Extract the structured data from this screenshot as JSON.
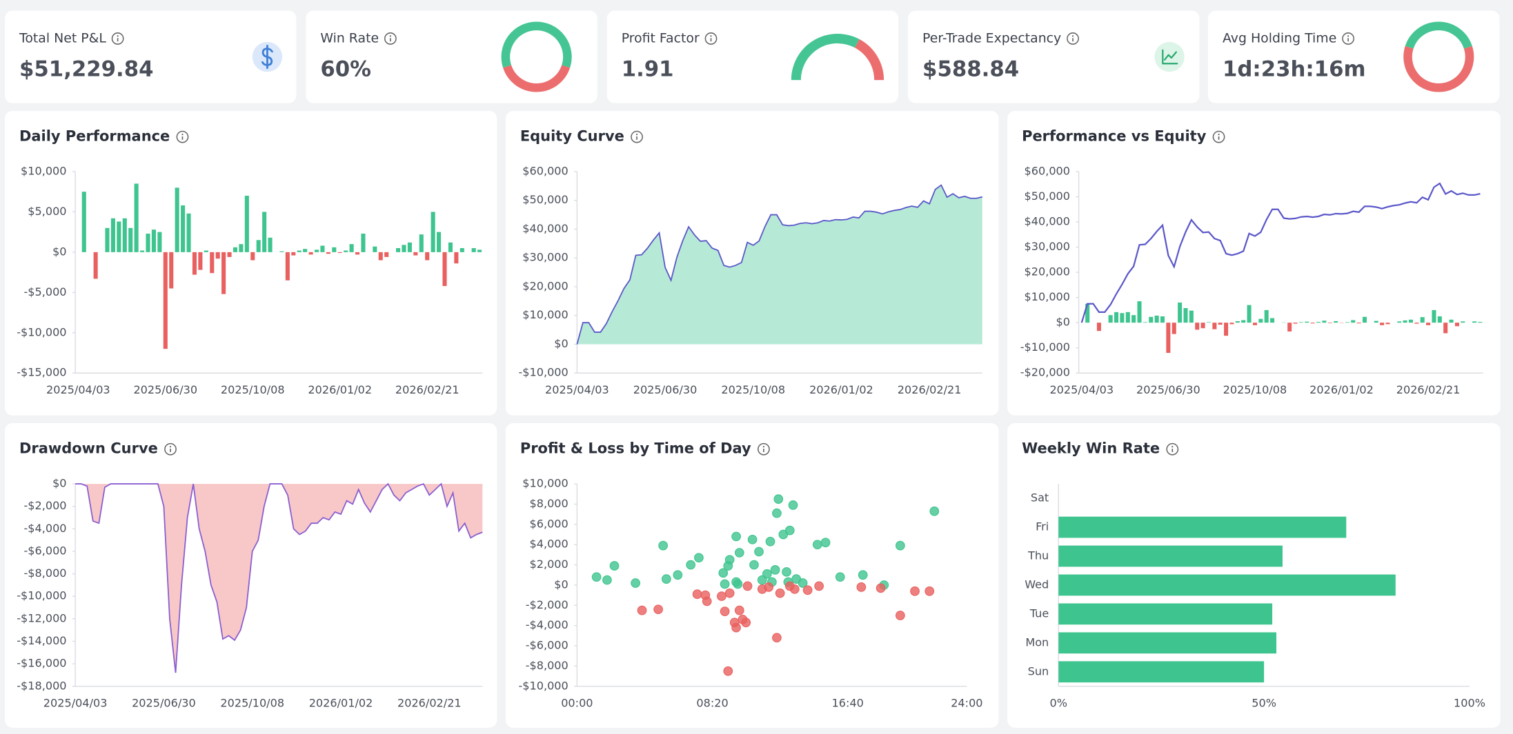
{
  "kpis": [
    {
      "label": "Total Net P&L",
      "value": "$51,229.84",
      "color": "#1a9a63"
    },
    {
      "label": "Win Rate",
      "value": "60%",
      "color": "#1f2430",
      "ring": 60
    },
    {
      "label": "Profit Factor",
      "value": 1.91,
      "color": "#1f2430"
    },
    {
      "label": "Per-Trade Expectancy",
      "value": "$588.84",
      "color": "#1a9a63"
    },
    {
      "label": "Avg Holding Time",
      "value": "1d:23h:16m",
      "color": "#1f2430",
      "ring": 40
    }
  ],
  "chart_data": [
    {
      "type": "bar",
      "title": "Daily Performance",
      "categories": [
        "2025/04/03",
        null,
        null,
        null,
        null,
        null,
        null,
        null,
        null,
        null,
        null,
        null,
        null,
        null,
        null,
        "2025/06/30",
        null,
        null,
        null,
        null,
        null,
        null,
        null,
        null,
        null,
        null,
        null,
        null,
        null,
        null,
        "2025/10/08",
        null,
        null,
        null,
        null,
        null,
        null,
        null,
        null,
        null,
        null,
        null,
        null,
        null,
        null,
        "2026/01/02",
        null,
        null,
        null,
        null,
        null,
        null,
        null,
        null,
        null,
        null,
        null,
        null,
        null,
        null,
        "2026/02/21",
        null,
        null,
        null,
        null,
        null,
        null,
        null,
        null,
        null
      ],
      "values": [
        0,
        7500,
        0,
        -3300,
        0,
        3000,
        4200,
        3800,
        4200,
        3000,
        8500,
        200,
        2300,
        2800,
        2500,
        -12000,
        -4500,
        8000,
        5800,
        4800,
        -2800,
        -2200,
        200,
        -2600,
        -800,
        -5200,
        -600,
        600,
        1000,
        7000,
        -1000,
        1500,
        5000,
        1800,
        0,
        100,
        -3500,
        -400,
        200,
        400,
        -300,
        300,
        800,
        -200,
        600,
        -100,
        200,
        1000,
        -300,
        2300,
        0,
        700,
        -1000,
        -600,
        0,
        500,
        900,
        1200,
        -400,
        2200,
        -1000,
        5000,
        2500,
        -4200,
        1200,
        -1400,
        500,
        0,
        500,
        300
      ],
      "positive_color": "#3ec48e",
      "negative_color": "#e8605f",
      "ylim": [
        -15000,
        10000
      ],
      "yticks": [
        {
          "value": -15000,
          "label": "-$15,000"
        },
        {
          "value": -10000,
          "label": "-$10,000"
        },
        {
          "value": -5000,
          "label": "-$5,000"
        },
        {
          "value": 0,
          "label": "$0"
        },
        {
          "value": 5000,
          "label": "$5,000"
        },
        {
          "value": 10000,
          "label": "$10,000"
        }
      ]
    },
    {
      "type": "area",
      "title": "Equity Curve",
      "categories": [
        "2025/04/03",
        null,
        null,
        null,
        null,
        null,
        null,
        null,
        null,
        null,
        null,
        null,
        null,
        null,
        null,
        "2025/06/30",
        null,
        null,
        null,
        null,
        null,
        null,
        null,
        null,
        null,
        null,
        null,
        null,
        null,
        null,
        "2025/10/08",
        null,
        null,
        null,
        null,
        null,
        null,
        null,
        null,
        null,
        null,
        null,
        null,
        null,
        null,
        "2026/01/02",
        null,
        null,
        null,
        null,
        null,
        null,
        null,
        null,
        null,
        null,
        null,
        null,
        null,
        null,
        "2026/02/21",
        null,
        null,
        null,
        null,
        null,
        null,
        null,
        null,
        null
      ],
      "values": [
        0,
        7500,
        7500,
        4200,
        4200,
        7200,
        11400,
        15200,
        19400,
        22400,
        30900,
        31100,
        33400,
        36200,
        38700,
        26700,
        22200,
        30200,
        36000,
        40800,
        38000,
        35800,
        36000,
        33400,
        32600,
        27400,
        26800,
        27400,
        28400,
        35400,
        34400,
        35900,
        40900,
        45000,
        45000,
        41500,
        41200,
        41400,
        42000,
        42200,
        41900,
        42200,
        43000,
        42800,
        43300,
        43200,
        43400,
        44200,
        43900,
        46200,
        46200,
        45900,
        45300,
        46000,
        46500,
        46800,
        47500,
        48000,
        47600,
        49800,
        48800,
        53800,
        55300,
        51100,
        52300,
        50900,
        51400,
        50700,
        50700,
        51200
      ],
      "color": "#5b57c9",
      "fill": "#b6ead7",
      "ylim": [
        -10000,
        60000
      ],
      "yticks": [
        {
          "value": -10000,
          "label": "-$10,000"
        },
        {
          "value": 0,
          "label": "$0"
        },
        {
          "value": 10000,
          "label": "$10,000"
        },
        {
          "value": 20000,
          "label": "$20,000"
        },
        {
          "value": 30000,
          "label": "$30,000"
        },
        {
          "value": 40000,
          "label": "$40,000"
        },
        {
          "value": 50000,
          "label": "$50,000"
        },
        {
          "value": 60000,
          "label": "$60,000"
        }
      ]
    },
    {
      "type": "combo",
      "title": "Performance vs Equity",
      "categories": [
        "2025/04/03",
        null,
        null,
        null,
        null,
        null,
        null,
        null,
        null,
        null,
        null,
        null,
        null,
        null,
        null,
        "2025/06/30",
        null,
        null,
        null,
        null,
        null,
        null,
        null,
        null,
        null,
        null,
        null,
        null,
        null,
        null,
        "2025/10/08",
        null,
        null,
        null,
        null,
        null,
        null,
        null,
        null,
        null,
        null,
        null,
        null,
        null,
        null,
        "2026/01/02",
        null,
        null,
        null,
        null,
        null,
        null,
        null,
        null,
        null,
        null,
        null,
        null,
        null,
        null,
        "2026/02/21",
        null,
        null,
        null,
        null,
        null,
        null,
        null,
        null,
        null
      ],
      "series": [
        {
          "type": "bar",
          "positive_color": "#3ec48e",
          "negative_color": "#e8605f",
          "values": [
            0,
            7500,
            0,
            -3300,
            0,
            3000,
            4200,
            3800,
            4200,
            3000,
            8500,
            200,
            2300,
            2800,
            2500,
            -12000,
            -4500,
            8000,
            5800,
            4800,
            -2800,
            -2200,
            200,
            -2600,
            -800,
            -5200,
            -600,
            600,
            1000,
            7000,
            -1000,
            1500,
            5000,
            1800,
            0,
            100,
            -3500,
            -400,
            200,
            400,
            -300,
            300,
            800,
            -200,
            600,
            -100,
            200,
            1000,
            -300,
            2300,
            0,
            700,
            -1000,
            -600,
            0,
            500,
            900,
            1200,
            -400,
            2200,
            -1000,
            5000,
            2500,
            -4200,
            1200,
            -1400,
            500,
            0,
            500,
            300
          ]
        },
        {
          "type": "line",
          "color": "#5b57c9",
          "values": [
            0,
            7500,
            7500,
            4200,
            4200,
            7200,
            11400,
            15200,
            19400,
            22400,
            30900,
            31100,
            33400,
            36200,
            38700,
            26700,
            22200,
            30200,
            36000,
            40800,
            38000,
            35800,
            36000,
            33400,
            32600,
            27400,
            26800,
            27400,
            28400,
            35400,
            34400,
            35900,
            40900,
            45000,
            45000,
            41500,
            41200,
            41400,
            42000,
            42200,
            41900,
            42200,
            43000,
            42800,
            43300,
            43200,
            43400,
            44200,
            43900,
            46200,
            46200,
            45900,
            45300,
            46000,
            46500,
            46800,
            47500,
            48000,
            47600,
            49800,
            48800,
            53800,
            55300,
            51100,
            52300,
            50900,
            51400,
            50700,
            50700,
            51200
          ]
        }
      ],
      "ylim": [
        -20000,
        60000
      ],
      "yticks": [
        {
          "value": -20000,
          "label": "-$20,000"
        },
        {
          "value": -10000,
          "label": "-$10,000"
        },
        {
          "value": 0,
          "label": "$0"
        },
        {
          "value": 10000,
          "label": "$10,000"
        },
        {
          "value": 20000,
          "label": "$20,000"
        },
        {
          "value": 30000,
          "label": "$30,000"
        },
        {
          "value": 40000,
          "label": "$40,000"
        },
        {
          "value": 50000,
          "label": "$50,000"
        },
        {
          "value": 60000,
          "label": "$60,000"
        }
      ]
    },
    {
      "type": "area",
      "title": "Drawdown Curve",
      "categories": [
        "2025/04/03",
        null,
        null,
        null,
        null,
        null,
        null,
        null,
        null,
        null,
        null,
        null,
        null,
        null,
        null,
        "2025/06/30",
        null,
        null,
        null,
        null,
        null,
        null,
        null,
        null,
        null,
        null,
        null,
        null,
        null,
        null,
        "2025/10/08",
        null,
        null,
        null,
        null,
        null,
        null,
        null,
        null,
        null,
        null,
        null,
        null,
        null,
        null,
        "2026/01/02",
        null,
        null,
        null,
        null,
        null,
        null,
        null,
        null,
        null,
        null,
        null,
        null,
        null,
        null,
        "2026/02/21",
        null,
        null,
        null,
        null,
        null,
        null,
        null,
        null,
        null
      ],
      "values": [
        0,
        0,
        -200,
        -3300,
        -3500,
        -300,
        0,
        0,
        0,
        0,
        0,
        0,
        0,
        0,
        0,
        -2000,
        -12000,
        -16800,
        -9000,
        -3000,
        0,
        -4000,
        -6000,
        -9000,
        -10500,
        -13800,
        -13500,
        -13900,
        -13000,
        -11000,
        -6000,
        -5000,
        -2000,
        0,
        0,
        0,
        -1000,
        -4000,
        -4500,
        -4200,
        -3500,
        -3500,
        -3000,
        -3200,
        -2500,
        -2700,
        -1500,
        -1800,
        -500,
        -1700,
        -2500,
        -1500,
        -500,
        0,
        -1000,
        -1500,
        -800,
        -500,
        -200,
        0,
        -1000,
        -500,
        0,
        -2000,
        -800,
        -4200,
        -3500,
        -4800,
        -4500,
        -4300
      ],
      "color": "#8b5fd0",
      "fill": "#f8c8c8",
      "ylim": [
        -18000,
        0
      ],
      "yticks": [
        {
          "value": -18000,
          "label": "-$18,000"
        },
        {
          "value": -16000,
          "label": "-$16,000"
        },
        {
          "value": -14000,
          "label": "-$14,000"
        },
        {
          "value": -12000,
          "label": "-$12,000"
        },
        {
          "value": -10000,
          "label": "-$10,000"
        },
        {
          "value": -8000,
          "label": "-$8,000"
        },
        {
          "value": -6000,
          "label": "-$6,000"
        },
        {
          "value": -4000,
          "label": "-$4,000"
        },
        {
          "value": -2000,
          "label": "-$2,000"
        },
        {
          "value": 0,
          "label": "$0"
        }
      ]
    },
    {
      "type": "scatter",
      "title": "Profit & Loss by Time of Day",
      "series": [
        {
          "color": "#3ec48e",
          "x": [
            1.2,
            1.85,
            2.3,
            3.6,
            5.3,
            5.5,
            6.2,
            7,
            7.5,
            9,
            9.1,
            9.3,
            9.4,
            9.8,
            9.8,
            10,
            9.9,
            10.8,
            10.9,
            11.2,
            11.4,
            11.7,
            11.9,
            12,
            12.2,
            12.3,
            12.4,
            12.7,
            12.9,
            13.1,
            13.3,
            13,
            13.5,
            13.9,
            14.8,
            15.3,
            16.2,
            17.6,
            18.9,
            19.9,
            22
          ],
          "values": [
            800,
            500,
            1900,
            200,
            3900,
            600,
            1000,
            2000,
            2700,
            1200,
            100,
            1900,
            2500,
            4800,
            300,
            3200,
            100,
            4500,
            2000,
            3300,
            500,
            1100,
            4300,
            300,
            1500,
            7100,
            8500,
            5000,
            1300,
            5400,
            7900,
            300,
            600,
            200,
            4000,
            4200,
            800,
            1000,
            0,
            3900,
            7300
          ]
        },
        {
          "color": "#e8605f",
          "x": [
            4,
            5,
            7.4,
            7.9,
            8,
            8.9,
            9.1,
            9.4,
            9.7,
            9.8,
            10,
            10.2,
            10.4,
            10.5,
            9.3,
            11.4,
            11.8,
            12.3,
            12.5,
            13.1,
            13.4,
            14.2,
            14.9,
            17.5,
            18.7,
            19.9,
            20.8,
            21.7
          ],
          "values": [
            -2500,
            -2400,
            -900,
            -1000,
            -1600,
            -1100,
            -2600,
            -800,
            -3700,
            -4200,
            -2500,
            -3400,
            -3700,
            -100,
            -8500,
            -400,
            -200,
            -5200,
            -800,
            -100,
            -400,
            -500,
            -100,
            -200,
            -300,
            -3000,
            -600,
            -600
          ]
        }
      ],
      "xlim": [
        0,
        24
      ],
      "xticks": [
        {
          "value": 0,
          "label": "00:00"
        },
        {
          "value": 8.333,
          "label": "08:20"
        },
        {
          "value": 16.667,
          "label": "16:40"
        },
        {
          "value": 24,
          "label": "24:00"
        }
      ],
      "ylim": [
        -10000,
        10000
      ],
      "yticks": [
        {
          "value": -10000,
          "label": "-$10,000"
        },
        {
          "value": -8000,
          "label": "-$8,000"
        },
        {
          "value": -6000,
          "label": "-$6,000"
        },
        {
          "value": -4000,
          "label": "-$4,000"
        },
        {
          "value": -2000,
          "label": "-$2,000"
        },
        {
          "value": 0,
          "label": "$0"
        },
        {
          "value": 2000,
          "label": "$2,000"
        },
        {
          "value": 4000,
          "label": "$4,000"
        },
        {
          "value": 6000,
          "label": "$6,000"
        },
        {
          "value": 8000,
          "label": "$8,000"
        },
        {
          "value": 10000,
          "label": "$10,000"
        }
      ]
    },
    {
      "type": "hbar",
      "title": "Weekly Win Rate",
      "categories": [
        "Sat",
        "Fri",
        "Thu",
        "Wed",
        "Tue",
        "Mon",
        "Sun"
      ],
      "values": [
        0,
        70,
        54.5,
        82,
        52,
        53,
        50
      ],
      "color": "#3ec48e",
      "xlim": [
        0,
        100
      ],
      "xticks": [
        {
          "value": 0,
          "label": "0%"
        },
        {
          "value": 50,
          "label": "50%"
        },
        {
          "value": 100,
          "label": "100%"
        }
      ]
    }
  ]
}
